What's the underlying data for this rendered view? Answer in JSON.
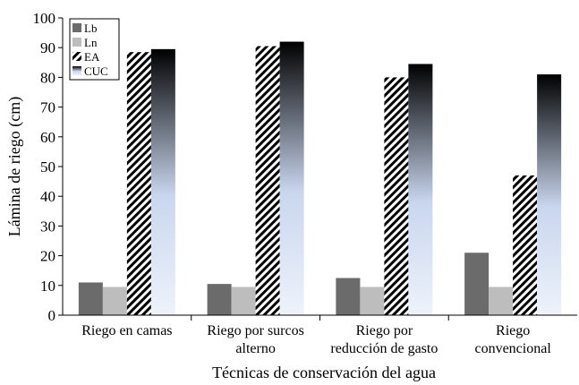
{
  "chart_data": {
    "type": "bar",
    "title": "",
    "xlabel": "Técnicas de conservación del agua",
    "ylabel": "Lámina de riego (cm)",
    "ylim": [
      0,
      100
    ],
    "yticks": [
      "0",
      "10",
      "20",
      "30",
      "40",
      "50",
      "60",
      "70",
      "80",
      "90",
      "100"
    ],
    "grid": false,
    "legend_position": "top-left",
    "categories": [
      [
        "Riego en camas"
      ],
      [
        "Riego por surcos",
        "alterno"
      ],
      [
        "Riego por",
        "reducción de gasto"
      ],
      [
        "Riego",
        "convencional"
      ]
    ],
    "series": [
      {
        "name": "Lb",
        "values": [
          11,
          10.5,
          12.5,
          21
        ],
        "fill": "solid",
        "color": "#6b6b6b"
      },
      {
        "name": "Ln",
        "values": [
          9.5,
          9.5,
          9.5,
          9.5
        ],
        "fill": "solid",
        "color": "#bdbdbd"
      },
      {
        "name": "EA",
        "values": [
          88.5,
          90.5,
          80,
          47
        ],
        "fill": "hatch",
        "color": "#000000"
      },
      {
        "name": "CUC",
        "values": [
          89.5,
          92,
          84.5,
          81
        ],
        "fill": "gradient",
        "color_top": "#000000",
        "color_bottom": "#eef3fb"
      }
    ]
  }
}
